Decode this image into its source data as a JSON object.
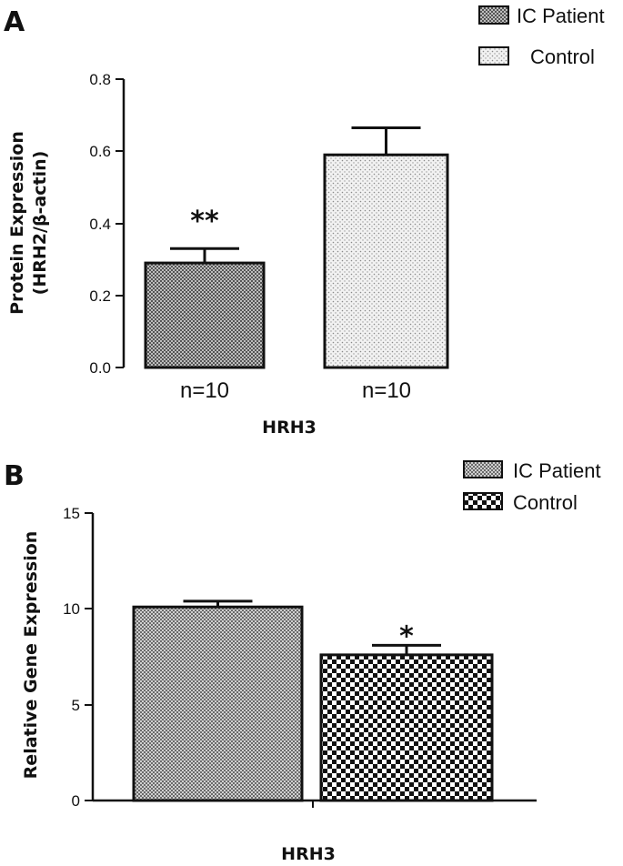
{
  "chart_data": [
    {
      "panel": "A",
      "type": "bar",
      "categories": [
        "n=10",
        "n=10"
      ],
      "series": [
        {
          "name": "IC Patient",
          "values": [
            0.29,
            null
          ],
          "error": [
            0.04,
            null
          ],
          "significance": [
            "**",
            ""
          ]
        },
        {
          "name": "Control",
          "values": [
            null,
            0.59
          ],
          "error": [
            null,
            0.075
          ],
          "significance": [
            "",
            ""
          ]
        }
      ],
      "legend": [
        "IC Patient",
        "Control"
      ],
      "legend_position": "top-right",
      "ylabel_lines": [
        "Protein Expression",
        "(HRH2/β-actin)"
      ],
      "xlabel": "HRH3",
      "ylim": [
        0,
        0.8
      ],
      "yticks": [
        "0.0",
        "0.2",
        "0.4",
        "0.6",
        "0.8"
      ],
      "grid": false
    },
    {
      "panel": "B",
      "type": "bar",
      "categories": [
        "",
        ""
      ],
      "series": [
        {
          "name": "IC Patient",
          "values": [
            10.1,
            null
          ],
          "error": [
            0.3,
            null
          ],
          "significance": [
            "",
            ""
          ]
        },
        {
          "name": "Control",
          "values": [
            null,
            7.6
          ],
          "error": [
            null,
            0.5
          ],
          "significance": [
            "",
            "*"
          ]
        }
      ],
      "legend": [
        "IC Patient",
        "Control"
      ],
      "legend_position": "top-right",
      "ylabel_lines": [
        "Relative Gene Expression"
      ],
      "xlabel": "HRH3",
      "ylim": [
        0,
        15
      ],
      "yticks": [
        "0",
        "5",
        "10",
        "15"
      ],
      "grid": false
    }
  ]
}
